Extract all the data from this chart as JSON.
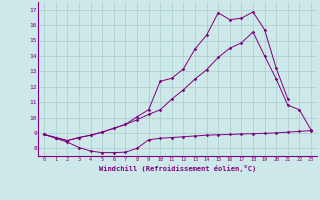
{
  "xlabel": "Windchill (Refroidissement éolien,°C)",
  "background_color": "#cce8e8",
  "line_color": "#800080",
  "grid_color": "#aacccc",
  "xlim": [
    -0.5,
    23.5
  ],
  "ylim": [
    7.5,
    17.5
  ],
  "xticks": [
    0,
    1,
    2,
    3,
    4,
    5,
    6,
    7,
    8,
    9,
    10,
    11,
    12,
    13,
    14,
    15,
    16,
    17,
    18,
    19,
    20,
    21,
    22,
    23
  ],
  "yticks": [
    8,
    9,
    10,
    11,
    12,
    13,
    14,
    15,
    16,
    17
  ],
  "line1_x": [
    0,
    1,
    2,
    3,
    4,
    5,
    6,
    7,
    8,
    9,
    10,
    11,
    12,
    13,
    14,
    15,
    16,
    17,
    18,
    19,
    20,
    21,
    22,
    23
  ],
  "line1_y": [
    8.9,
    8.65,
    8.4,
    8.05,
    7.82,
    7.72,
    7.72,
    7.75,
    8.0,
    8.55,
    8.65,
    8.7,
    8.75,
    8.8,
    8.85,
    8.88,
    8.9,
    8.93,
    8.95,
    8.97,
    9.0,
    9.05,
    9.1,
    9.15
  ],
  "line2_x": [
    0,
    1,
    2,
    3,
    4,
    5,
    6,
    7,
    8,
    9,
    10,
    11,
    12,
    13,
    14,
    15,
    16,
    17,
    18,
    19,
    20,
    21,
    22,
    23
  ],
  "line2_y": [
    8.9,
    8.7,
    8.5,
    8.7,
    8.85,
    9.05,
    9.3,
    9.55,
    9.85,
    10.2,
    10.5,
    11.2,
    11.8,
    12.5,
    13.1,
    13.9,
    14.5,
    14.85,
    15.55,
    14.0,
    12.5,
    10.8,
    10.5,
    9.2
  ],
  "line3_x": [
    0,
    1,
    2,
    3,
    4,
    5,
    6,
    7,
    8,
    9,
    10,
    11,
    12,
    13,
    14,
    15,
    16,
    17,
    18,
    19,
    20,
    21,
    22,
    23
  ],
  "line3_y": [
    8.9,
    8.7,
    8.5,
    8.7,
    8.85,
    9.05,
    9.3,
    9.55,
    10.05,
    10.5,
    12.35,
    12.55,
    13.15,
    14.45,
    15.35,
    16.8,
    16.35,
    16.45,
    16.85,
    15.7,
    13.2,
    11.2,
    null,
    null
  ]
}
